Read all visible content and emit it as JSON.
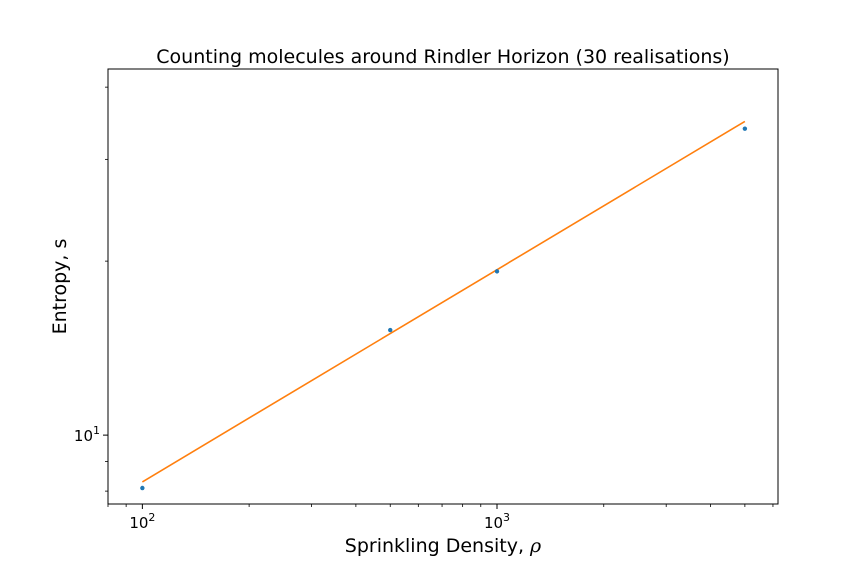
{
  "chart_data": {
    "type": "scatter",
    "title": "Counting molecules around Rindler Horizon (30 realisations)",
    "xlabel_text": "Sprinkling Density, ",
    "xlabel_symbol": "ρ",
    "ylabel": "Entropy, s",
    "xscale": "log",
    "yscale": "log",
    "xlim": [
      80,
      6200
    ],
    "ylim": [
      7.6,
      43
    ],
    "x_ticks": [
      {
        "value": 100,
        "base": "10",
        "exp": "2"
      },
      {
        "value": 1000,
        "base": "10",
        "exp": "3"
      }
    ],
    "y_ticks": [
      {
        "value": 10,
        "base": "10",
        "exp": "1"
      }
    ],
    "series": [
      {
        "kind": "points",
        "color": "#1f77b4",
        "x": [
          100,
          500,
          1000,
          5000
        ],
        "y": [
          8.1,
          15.2,
          19.2,
          33.9
        ]
      },
      {
        "kind": "fit-line",
        "color": "#ff7f0e",
        "x": [
          100,
          5000
        ],
        "y": [
          8.3,
          34.9
        ]
      }
    ],
    "grid": false,
    "legend": "none"
  }
}
